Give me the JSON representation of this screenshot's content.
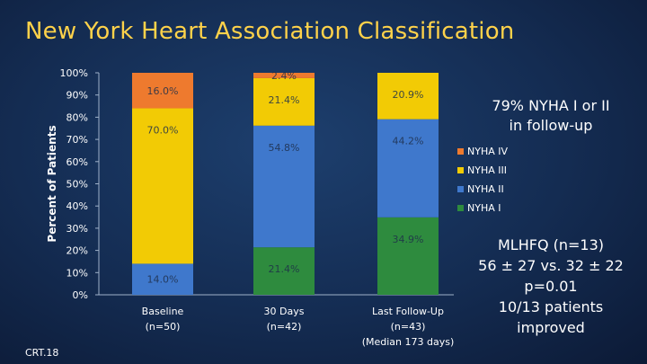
{
  "slide": {
    "title": "New York Heart Association Classification",
    "note_1": [
      "79% NYHA I or II",
      "in follow-up"
    ],
    "note_2": [
      "MLHFQ (n=13)",
      "56 ± 27 vs. 32 ± 22",
      "p=0.01",
      "10/13 patients",
      "improved"
    ],
    "slide_id": "CRT.18"
  },
  "chart_data": {
    "type": "bar",
    "stacked": true,
    "ylabel": "Percent of Patients",
    "ylim": [
      0,
      100
    ],
    "yticks": [
      "0%",
      "10%",
      "20%",
      "30%",
      "40%",
      "50%",
      "60%",
      "70%",
      "80%",
      "90%",
      "100%"
    ],
    "categories": [
      [
        "Baseline",
        "(n=50)"
      ],
      [
        "30 Days",
        "(n=42)"
      ],
      [
        "Last Follow-Up",
        "(n=43)",
        "(Median 173 days)"
      ]
    ],
    "series": [
      {
        "name": "NYHA I",
        "color": "#2e8b3e",
        "values": [
          0,
          21.4,
          34.9
        ],
        "labels": [
          "",
          "21.4%",
          "34.9%"
        ]
      },
      {
        "name": "NYHA II",
        "color": "#3f78cc",
        "values": [
          14.0,
          54.8,
          44.2
        ],
        "labels": [
          "14.0%",
          "54.8%",
          "44.2%"
        ]
      },
      {
        "name": "NYHA III",
        "color": "#f2cb05",
        "values": [
          70.0,
          21.4,
          20.9
        ],
        "labels": [
          "70.0%",
          "21.4%",
          "20.9%"
        ]
      },
      {
        "name": "NYHA IV",
        "color": "#ee7a2e",
        "values": [
          16.0,
          2.4,
          0
        ],
        "labels": [
          "16.0%",
          "2.4%",
          ""
        ]
      }
    ],
    "legend_position": "right",
    "legend_order": [
      "NYHA IV",
      "NYHA III",
      "NYHA II",
      "NYHA I"
    ],
    "grid": false
  }
}
